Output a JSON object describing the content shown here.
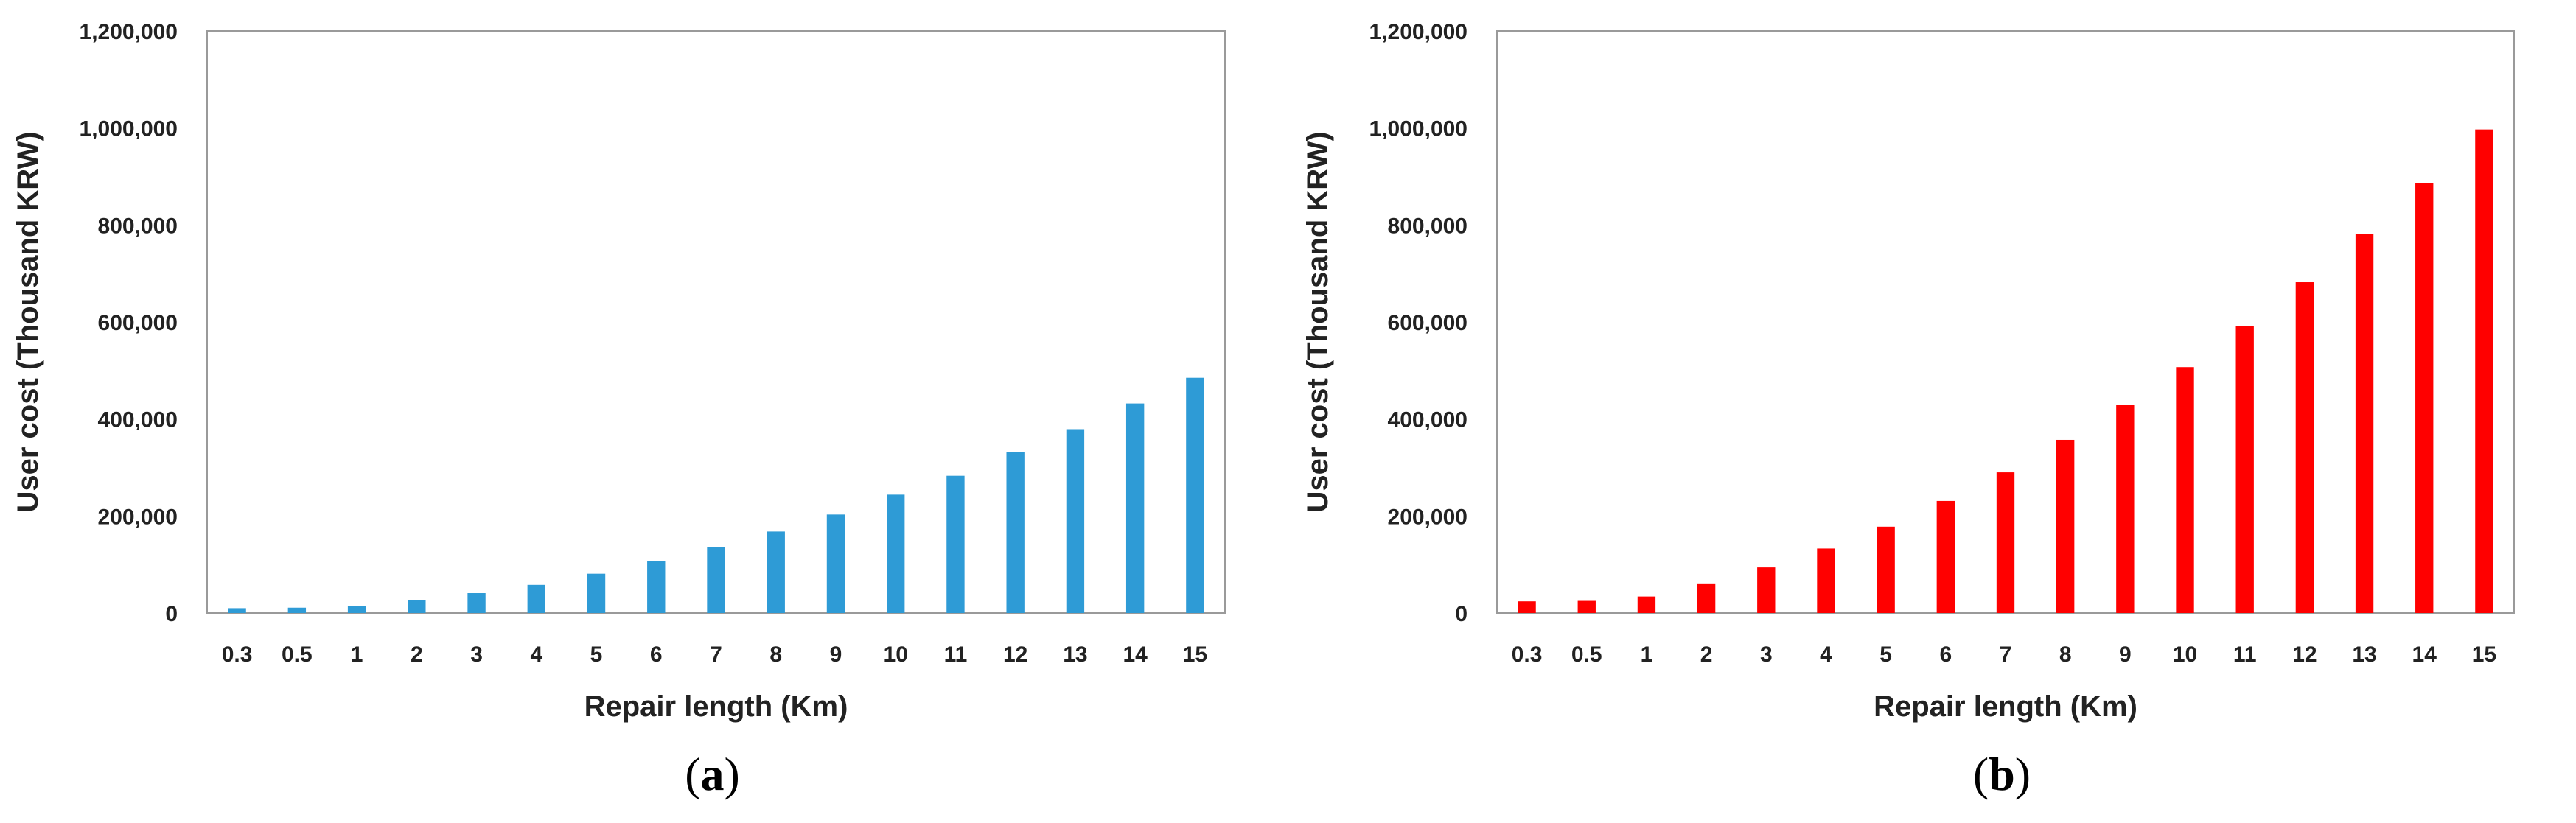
{
  "chart_data": [
    {
      "type": "bar",
      "panel_label": "a",
      "title": "",
      "xlabel": "Repair length (Km)",
      "ylabel": "User cost (Thousand KRW)",
      "ylim": [
        0,
        1200000
      ],
      "yticks": [
        0,
        200000,
        400000,
        600000,
        800000,
        1000000,
        1200000
      ],
      "ytick_labels": [
        "0",
        "200,000",
        "400,000",
        "600,000",
        "800,000",
        "1,000,000",
        "1,200,000"
      ],
      "grid": false,
      "legend": "none",
      "bar_color": "#2e9bd6",
      "categories": [
        "0.3",
        "0.5",
        "1",
        "2",
        "3",
        "4",
        "5",
        "6",
        "7",
        "8",
        "9",
        "10",
        "11",
        "12",
        "13",
        "14",
        "15"
      ],
      "values": [
        10000,
        11000,
        14000,
        27000,
        41000,
        58000,
        81000,
        107000,
        136000,
        168000,
        203000,
        244000,
        283000,
        332000,
        379000,
        432000,
        485000
      ]
    },
    {
      "type": "bar",
      "panel_label": "b",
      "title": "",
      "xlabel": "Repair length (Km)",
      "ylabel": "User cost (Thousand KRW)",
      "ylim": [
        0,
        1200000
      ],
      "yticks": [
        0,
        200000,
        400000,
        600000,
        800000,
        1000000,
        1200000
      ],
      "ytick_labels": [
        "0",
        "200,000",
        "400,000",
        "600,000",
        "800,000",
        "1,000,000",
        "1,200,000"
      ],
      "grid": false,
      "legend": "none",
      "bar_color": "#ff0000",
      "categories": [
        "0.3",
        "0.5",
        "1",
        "2",
        "3",
        "4",
        "5",
        "6",
        "7",
        "8",
        "9",
        "10",
        "11",
        "12",
        "13",
        "14",
        "15"
      ],
      "values": [
        24000,
        25000,
        34000,
        61000,
        94000,
        133000,
        178000,
        231000,
        290000,
        357000,
        429000,
        507000,
        591000,
        682000,
        782000,
        886000,
        997000
      ]
    }
  ]
}
